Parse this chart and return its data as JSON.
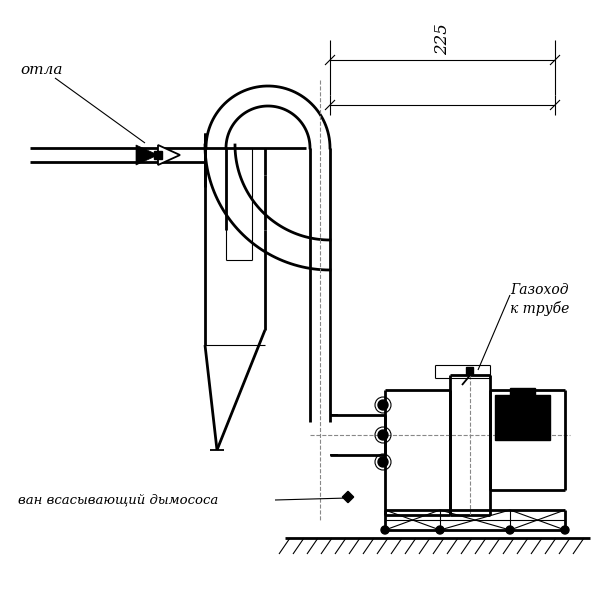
{
  "bg_color": "#ffffff",
  "line_color": "#000000",
  "lw_thick": 2.0,
  "lw_thin": 0.8,
  "lw_med": 1.3,
  "label_otla": "отла",
  "label_gazohod1": "Газоход",
  "label_gazohod2": "к трубе",
  "label_dymosos": "ван всасывающий дымососа",
  "dim_225": "225"
}
